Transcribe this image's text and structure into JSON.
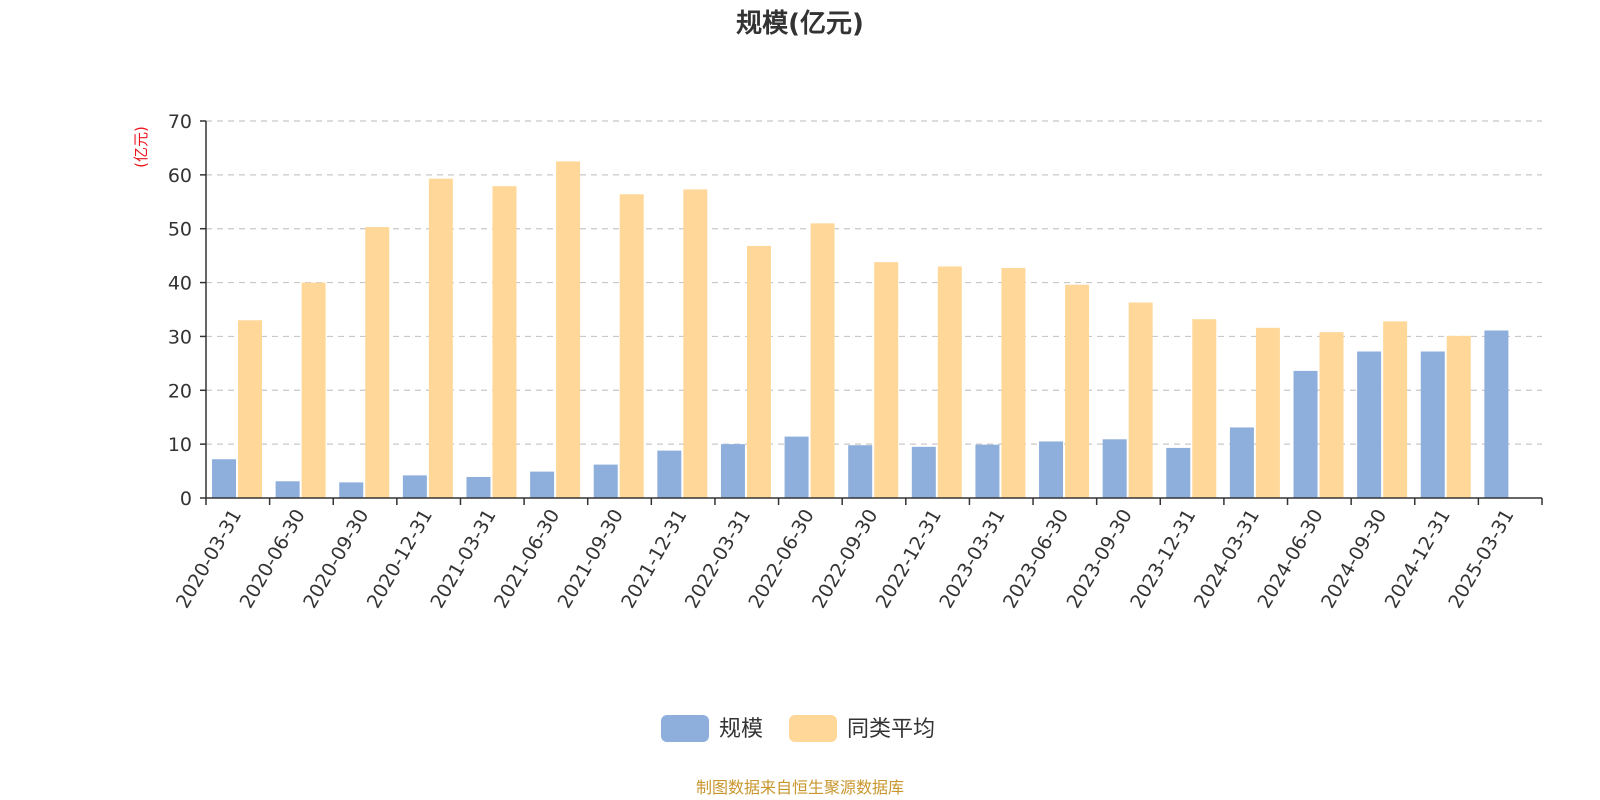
{
  "chart_data": {
    "type": "bar",
    "title": "规模(亿元)",
    "ylabel": "(亿元)",
    "xlabel": "",
    "ylim": [
      0,
      70
    ],
    "yticks": [
      0,
      10,
      20,
      30,
      40,
      50,
      60,
      70
    ],
    "grid": true,
    "legend_position": "bottom",
    "categories": [
      "2020-03-31",
      "2020-06-30",
      "2020-09-30",
      "2020-12-31",
      "2021-03-31",
      "2021-06-30",
      "2021-09-30",
      "2021-12-31",
      "2022-03-31",
      "2022-06-30",
      "2022-09-30",
      "2022-12-31",
      "2023-03-31",
      "2023-06-30",
      "2023-09-30",
      "2023-12-31",
      "2024-03-31",
      "2024-06-30",
      "2024-09-30",
      "2024-12-31",
      "2025-03-31"
    ],
    "series": [
      {
        "name": "规模",
        "color": "#8eaedc",
        "values": [
          7.2,
          3.1,
          2.9,
          4.2,
          3.9,
          4.9,
          6.2,
          8.8,
          10.0,
          11.4,
          9.8,
          9.5,
          9.9,
          10.5,
          10.9,
          9.3,
          13.1,
          23.6,
          27.2,
          27.2,
          31.1
        ]
      },
      {
        "name": "同类平均",
        "color": "#ffd899",
        "values": [
          33.0,
          40.0,
          50.3,
          59.3,
          57.9,
          62.5,
          56.4,
          57.3,
          46.8,
          51.0,
          43.8,
          43.0,
          42.7,
          39.6,
          36.3,
          33.2,
          31.6,
          30.8,
          32.8,
          30.1,
          null
        ]
      }
    ]
  },
  "source_note": "制图数据来自恒生聚源数据库",
  "colors": {
    "unit_label": "#e8141c",
    "source_note": "#c9962e",
    "grid": "#c8c8c8",
    "axis": "#333333"
  }
}
